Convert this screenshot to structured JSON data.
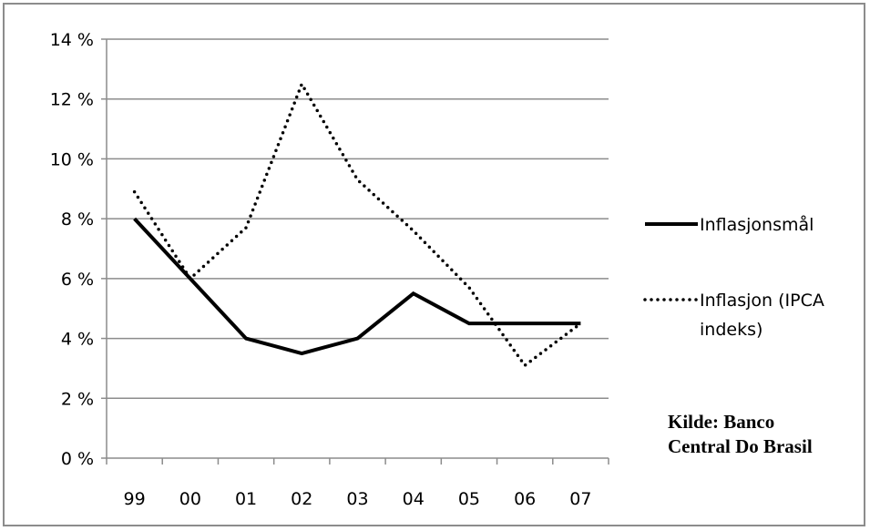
{
  "chart_data": {
    "type": "line",
    "categories": [
      "99",
      "00",
      "01",
      "02",
      "03",
      "04",
      "05",
      "06",
      "07"
    ],
    "ylim": [
      0,
      14
    ],
    "yticks": [
      "0 %",
      "2 %",
      "4 %",
      "6 %",
      "8 %",
      "10 %",
      "12 %",
      "14 %"
    ],
    "grid": true,
    "legend_position": "right",
    "series": [
      {
        "name": "Inflasjonsmål",
        "style": "solid",
        "color": "#000000",
        "values": [
          8.0,
          6.0,
          4.0,
          3.5,
          4.0,
          5.5,
          4.5,
          4.5,
          4.5
        ]
      },
      {
        "name": "Inflasjon (IPCA indeks)",
        "style": "dotted",
        "color": "#000000",
        "values": [
          8.9,
          6.0,
          7.7,
          12.5,
          9.3,
          7.6,
          5.7,
          3.1,
          4.5
        ]
      }
    ],
    "legend_labels": {
      "series1": "Inflasjonsmål",
      "series2_line1": "Inflasjon (IPCA",
      "series2_line2": "indeks)"
    },
    "source_lines": [
      "Kilde: Banco",
      "Central Do Brasil"
    ]
  }
}
